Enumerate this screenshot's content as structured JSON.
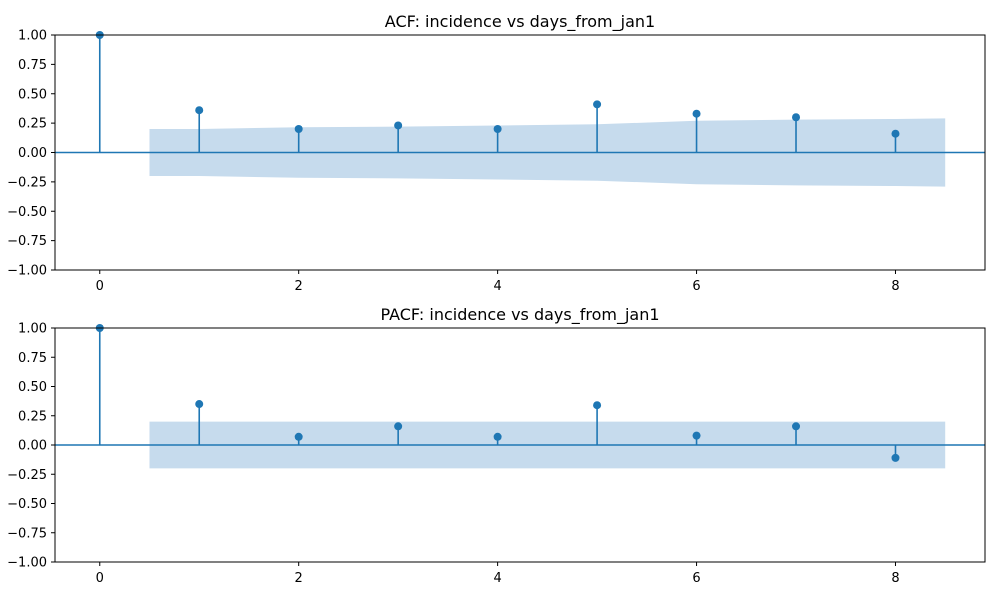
{
  "chart_data": [
    {
      "type": "stem",
      "title": "ACF: incidence vs days_from_jan1",
      "xlabel": "",
      "ylabel": "",
      "xlim": [
        -0.45,
        8.9
      ],
      "ylim": [
        -1.0,
        1.0
      ],
      "x_ticks": [
        0,
        2,
        4,
        6,
        8
      ],
      "x_tick_labels": [
        "0",
        "2",
        "4",
        "6",
        "8"
      ],
      "y_ticks": [
        1.0,
        0.75,
        0.5,
        0.25,
        0.0,
        -0.25,
        -0.5,
        -0.75,
        -1.0
      ],
      "y_tick_labels": [
        "1.00",
        "0.75",
        "0.50",
        "0.25",
        "0.00",
        "−0.25",
        "−0.50",
        "−0.75",
        "−1.00"
      ],
      "lags": [
        0,
        1,
        2,
        3,
        4,
        5,
        6,
        7,
        8
      ],
      "values": [
        1.0,
        0.36,
        0.2,
        0.23,
        0.2,
        0.41,
        0.33,
        0.3,
        0.16
      ],
      "confidence_band": {
        "x": [
          0.5,
          1,
          2,
          3,
          4,
          5,
          6,
          7,
          8,
          8.5
        ],
        "upper": [
          0.2,
          0.2,
          0.215,
          0.22,
          0.23,
          0.24,
          0.27,
          0.28,
          0.285,
          0.29
        ],
        "lower": [
          -0.2,
          -0.2,
          -0.215,
          -0.22,
          -0.23,
          -0.24,
          -0.27,
          -0.28,
          -0.285,
          -0.29
        ]
      },
      "grid": false,
      "colors": {
        "stem": "#1f77b4",
        "band": "#c6dbed",
        "zero_line": "#1f77b4"
      }
    },
    {
      "type": "stem",
      "title": "PACF: incidence vs days_from_jan1",
      "xlabel": "",
      "ylabel": "",
      "xlim": [
        -0.45,
        8.9
      ],
      "ylim": [
        -1.0,
        1.0
      ],
      "x_ticks": [
        0,
        2,
        4,
        6,
        8
      ],
      "x_tick_labels": [
        "0",
        "2",
        "4",
        "6",
        "8"
      ],
      "y_ticks": [
        1.0,
        0.75,
        0.5,
        0.25,
        0.0,
        -0.25,
        -0.5,
        -0.75,
        -1.0
      ],
      "y_tick_labels": [
        "1.00",
        "0.75",
        "0.50",
        "0.25",
        "0.00",
        "−0.25",
        "−0.50",
        "−0.75",
        "−1.00"
      ],
      "lags": [
        0,
        1,
        2,
        3,
        4,
        5,
        6,
        7,
        8
      ],
      "values": [
        1.0,
        0.35,
        0.07,
        0.16,
        0.07,
        0.34,
        0.08,
        0.16,
        -0.11
      ],
      "confidence_band": {
        "x": [
          0.5,
          8.5
        ],
        "upper": [
          0.2,
          0.2
        ],
        "lower": [
          -0.2,
          -0.2
        ]
      },
      "grid": false,
      "colors": {
        "stem": "#1f77b4",
        "band": "#c6dbed",
        "zero_line": "#1f77b4"
      }
    }
  ]
}
